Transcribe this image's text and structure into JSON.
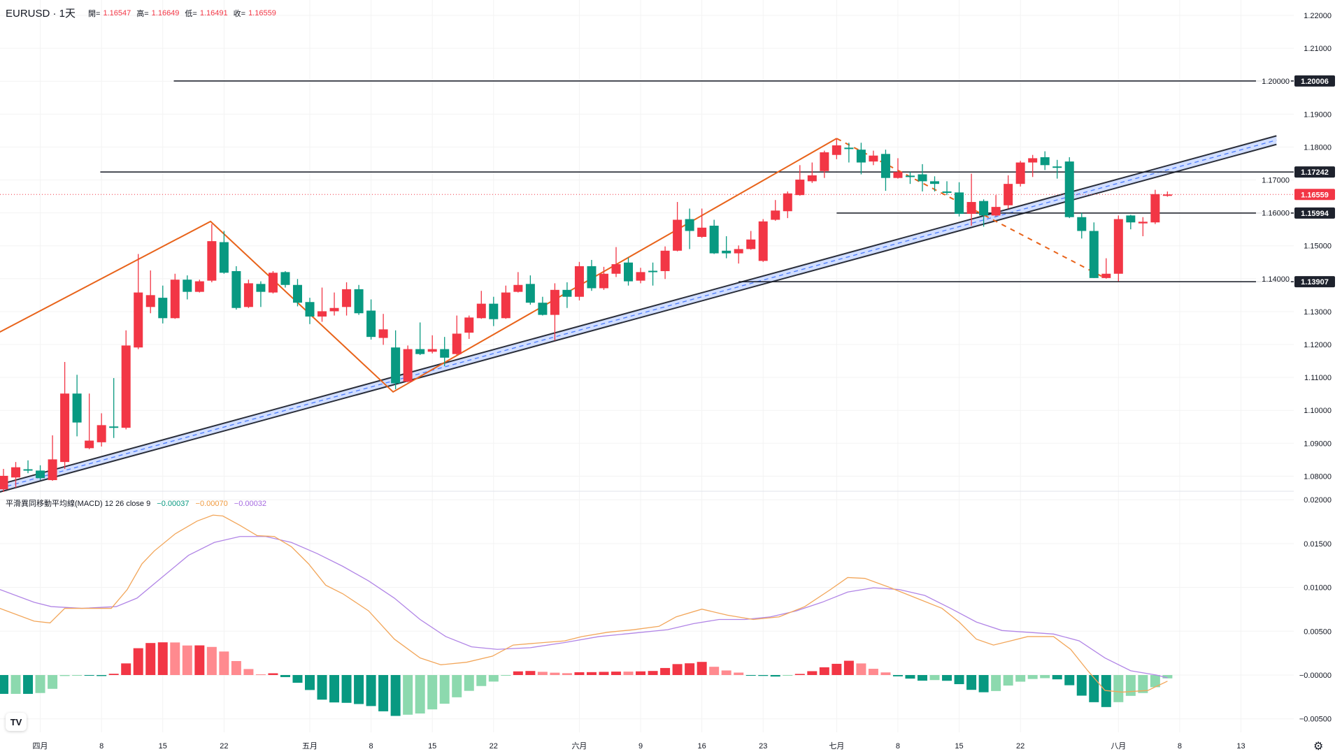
{
  "header": {
    "symbol": "EURUSD · 1天",
    "open_label": "開=",
    "open": "1.16547",
    "high_label": "高=",
    "high": "1.16649",
    "low_label": "低=",
    "low": "1.16491",
    "close_label": "收=",
    "close": "1.16559"
  },
  "macd_legend": {
    "title": "平滑異同移動平均線(MACD) 12 26 close 9",
    "histogram": "−0.00037",
    "macd": "−0.00070",
    "signal": "−0.00032"
  },
  "colors": {
    "up": "#F23645",
    "down": "#089981",
    "macd": "#F2A65A",
    "signal": "#B185E6",
    "zigzag": "#E8631A",
    "channel": "#2A2E39",
    "channel_fill": "#C9D8FF"
  },
  "chart_data": {
    "type": "candlestick",
    "price_axis": {
      "range": [
        1.075,
        1.225
      ],
      "ticks": [
        "1.22000",
        "1.21000",
        "1.20000",
        "1.19000",
        "1.18000",
        "1.17000",
        "1.16000",
        "1.15000",
        "1.14000",
        "1.13000",
        "1.12000",
        "1.11000",
        "1.10000",
        "1.09000",
        "1.08000"
      ]
    },
    "macd_axis": {
      "range": [
        -0.0063,
        0.0205
      ],
      "ticks": [
        "0.02000",
        "0.01500",
        "0.01000",
        "0.00500",
        "−0.00000",
        "−0.00500"
      ]
    },
    "time_ticks": [
      {
        "label": "四月",
        "index": 3
      },
      {
        "label": "8",
        "index": 8
      },
      {
        "label": "15",
        "index": 13
      },
      {
        "label": "22",
        "index": 18
      },
      {
        "label": "五月",
        "index": 25
      },
      {
        "label": "8",
        "index": 30
      },
      {
        "label": "15",
        "index": 35
      },
      {
        "label": "22",
        "index": 40
      },
      {
        "label": "六月",
        "index": 47
      },
      {
        "label": "9",
        "index": 52
      },
      {
        "label": "16",
        "index": 57
      },
      {
        "label": "23",
        "index": 62
      },
      {
        "label": "七月",
        "index": 68
      },
      {
        "label": "8",
        "index": 73
      },
      {
        "label": "15",
        "index": 78
      },
      {
        "label": "22",
        "index": 83
      },
      {
        "label": "八月",
        "index": 91
      },
      {
        "label": "8",
        "index": 96
      },
      {
        "label": "13",
        "index": 101
      }
    ],
    "candles_ohlc": [
      [
        1.076,
        1.0822,
        1.0752,
        1.0801
      ],
      [
        1.0796,
        1.0843,
        1.0765,
        1.0827
      ],
      [
        1.0821,
        1.0848,
        1.0809,
        1.0819
      ],
      [
        1.0817,
        1.0833,
        1.0788,
        1.0794
      ],
      [
        1.0788,
        1.0924,
        1.0786,
        1.0851
      ],
      [
        1.0843,
        1.1147,
        1.0822,
        1.1051
      ],
      [
        1.1051,
        1.1108,
        1.0921,
        1.0963
      ],
      [
        1.0885,
        1.1051,
        1.0882,
        1.0908
      ],
      [
        1.0903,
        1.0991,
        1.089,
        1.0955
      ],
      [
        1.0951,
        1.1098,
        1.0916,
        1.0949
      ],
      [
        1.0947,
        1.1243,
        1.0942,
        1.1197
      ],
      [
        1.1191,
        1.1475,
        1.1186,
        1.1358
      ],
      [
        1.1314,
        1.1425,
        1.1295,
        1.135
      ],
      [
        1.1342,
        1.1379,
        1.1264,
        1.128
      ],
      [
        1.128,
        1.1415,
        1.1278,
        1.1397
      ],
      [
        1.1397,
        1.141,
        1.1337,
        1.136
      ],
      [
        1.136,
        1.1397,
        1.1358,
        1.1392
      ],
      [
        1.1394,
        1.1566,
        1.1389,
        1.1514
      ],
      [
        1.1511,
        1.1545,
        1.1415,
        1.1418
      ],
      [
        1.1423,
        1.1438,
        1.1306,
        1.1311
      ],
      [
        1.1314,
        1.1397,
        1.1311,
        1.1386
      ],
      [
        1.1384,
        1.1392,
        1.1314,
        1.136
      ],
      [
        1.1358,
        1.1423,
        1.1355,
        1.1418
      ],
      [
        1.142,
        1.1423,
        1.1373,
        1.1381
      ],
      [
        1.1381,
        1.1399,
        1.1316,
        1.1327
      ],
      [
        1.1329,
        1.1342,
        1.1262,
        1.1285
      ],
      [
        1.1285,
        1.1373,
        1.1269,
        1.1301
      ],
      [
        1.1301,
        1.1358,
        1.1288,
        1.1311
      ],
      [
        1.1314,
        1.1389,
        1.1288,
        1.1368
      ],
      [
        1.1368,
        1.1381,
        1.129,
        1.1295
      ],
      [
        1.1303,
        1.1337,
        1.1215,
        1.1223
      ],
      [
        1.122,
        1.1293,
        1.1199,
        1.1246
      ],
      [
        1.1191,
        1.1243,
        1.1064,
        1.1082
      ],
      [
        1.1087,
        1.1197,
        1.1085,
        1.1186
      ],
      [
        1.1186,
        1.1267,
        1.1168,
        1.1171
      ],
      [
        1.1178,
        1.1228,
        1.1173,
        1.1186
      ],
      [
        1.1186,
        1.1223,
        1.1134,
        1.116
      ],
      [
        1.1171,
        1.1288,
        1.1168,
        1.1233
      ],
      [
        1.1236,
        1.1288,
        1.1217,
        1.1282
      ],
      [
        1.128,
        1.1363,
        1.1278,
        1.1324
      ],
      [
        1.1324,
        1.1345,
        1.1256,
        1.1277
      ],
      [
        1.128,
        1.1379,
        1.1278,
        1.1358
      ],
      [
        1.136,
        1.142,
        1.1358,
        1.1381
      ],
      [
        1.1384,
        1.141,
        1.1321,
        1.1327
      ],
      [
        1.1327,
        1.1345,
        1.1288,
        1.129
      ],
      [
        1.129,
        1.1386,
        1.1212,
        1.1366
      ],
      [
        1.1366,
        1.1389,
        1.1311,
        1.1345
      ],
      [
        1.1345,
        1.1451,
        1.1334,
        1.1438
      ],
      [
        1.1438,
        1.1457,
        1.1363,
        1.1371
      ],
      [
        1.1371,
        1.1436,
        1.1366,
        1.1415
      ],
      [
        1.1415,
        1.1496,
        1.1405,
        1.1444
      ],
      [
        1.1449,
        1.1464,
        1.1379,
        1.1392
      ],
      [
        1.1394,
        1.1433,
        1.1386,
        1.142
      ],
      [
        1.1424,
        1.1449,
        1.1379,
        1.1422
      ],
      [
        1.1423,
        1.1498,
        1.1399,
        1.1485
      ],
      [
        1.1485,
        1.1633,
        1.1483,
        1.1579
      ],
      [
        1.1581,
        1.1613,
        1.149,
        1.1545
      ],
      [
        1.1527,
        1.1613,
        1.1524,
        1.1555
      ],
      [
        1.1561,
        1.1579,
        1.1475,
        1.1477
      ],
      [
        1.1485,
        1.1529,
        1.1462,
        1.1477
      ],
      [
        1.1477,
        1.1501,
        1.1446,
        1.149
      ],
      [
        1.149,
        1.1545,
        1.1488,
        1.1519
      ],
      [
        1.1454,
        1.1581,
        1.1451,
        1.1574
      ],
      [
        1.1579,
        1.1639,
        1.1576,
        1.1607
      ],
      [
        1.1605,
        1.1665,
        1.1584,
        1.1659
      ],
      [
        1.1654,
        1.1745,
        1.1652,
        1.1701
      ],
      [
        1.1696,
        1.1753,
        1.1691,
        1.1714
      ],
      [
        1.1727,
        1.1789,
        1.1706,
        1.1784
      ],
      [
        1.1776,
        1.1826,
        1.1763,
        1.1805
      ],
      [
        1.1798,
        1.1813,
        1.1753,
        1.1796
      ],
      [
        1.1792,
        1.1813,
        1.1717,
        1.1753
      ],
      [
        1.1756,
        1.1789,
        1.1745,
        1.1774
      ],
      [
        1.1779,
        1.1792,
        1.1667,
        1.1706
      ],
      [
        1.1706,
        1.1766,
        1.1704,
        1.1724
      ],
      [
        1.1713,
        1.1724,
        1.1688,
        1.1711
      ],
      [
        1.1717,
        1.1748,
        1.1665,
        1.1696
      ],
      [
        1.1696,
        1.1711,
        1.1665,
        1.1688
      ],
      [
        1.1665,
        1.1696,
        1.1654,
        1.1663
      ],
      [
        1.1662,
        1.1693,
        1.1589,
        1.1597
      ],
      [
        1.1597,
        1.1719,
        1.1561,
        1.1633
      ],
      [
        1.1636,
        1.1641,
        1.1558,
        1.1592
      ],
      [
        1.1592,
        1.1654,
        1.1589,
        1.1618
      ],
      [
        1.1623,
        1.1714,
        1.1613,
        1.1688
      ],
      [
        1.1688,
        1.1758,
        1.168,
        1.1753
      ],
      [
        1.1753,
        1.1776,
        1.1709,
        1.1766
      ],
      [
        1.1769,
        1.1787,
        1.173,
        1.1745
      ],
      [
        1.1741,
        1.1761,
        1.1704,
        1.1739
      ],
      [
        1.1756,
        1.1769,
        1.1584,
        1.1587
      ],
      [
        1.1587,
        1.16,
        1.1522,
        1.1545
      ],
      [
        1.1545,
        1.1571,
        1.1402,
        1.1402
      ],
      [
        1.1402,
        1.1462,
        1.14,
        1.1415
      ],
      [
        1.1415,
        1.1592,
        1.1392,
        1.1581
      ],
      [
        1.1592,
        1.1594,
        1.155,
        1.1571
      ],
      [
        1.1568,
        1.1587,
        1.1529,
        1.1573
      ],
      [
        1.1571,
        1.167,
        1.1566,
        1.1657
      ],
      [
        1.16547,
        1.16649,
        1.16491,
        1.16559
      ]
    ],
    "horizontal_levels": [
      {
        "price": 1.20006,
        "label": "1.20006",
        "from_index": 13.9
      },
      {
        "price": 1.17242,
        "label": "1.17242",
        "from_index": 7.9
      },
      {
        "price": 1.15994,
        "label": "1.15994",
        "from_index": 68
      },
      {
        "price": 1.13907,
        "label": "1.13907",
        "from_index": 60
      }
    ],
    "last_price": {
      "price": 1.16559,
      "label": "1.16559"
    },
    "channel": {
      "upper": [
        [
          -0.3,
          1.0775
        ],
        [
          103.9,
          1.1834
        ]
      ],
      "lower": [
        [
          -0.3,
          1.0752
        ],
        [
          103.9,
          1.1808
        ]
      ]
    },
    "zigzag_solid": [
      [
        -0.3,
        1.1238
      ],
      [
        16.9,
        1.1574
      ],
      [
        31.8,
        1.1056
      ],
      [
        68,
        1.1826
      ]
    ],
    "zigzag_dashed": [
      [
        68,
        1.1826
      ],
      [
        89.9,
        1.1402
      ]
    ],
    "macd_line": [
      [
        -0.3,
        0.00761
      ],
      [
        2.5,
        0.00615
      ],
      [
        3.8,
        0.00595
      ],
      [
        5.0,
        0.00761
      ],
      [
        6.4,
        0.00761
      ],
      [
        8.8,
        0.00761
      ],
      [
        10.1,
        0.00976
      ],
      [
        11.3,
        0.01269
      ],
      [
        12.3,
        0.01415
      ],
      [
        14.0,
        0.0161
      ],
      [
        15.8,
        0.01757
      ],
      [
        17.1,
        0.01825
      ],
      [
        17.9,
        0.01815
      ],
      [
        19.3,
        0.01708
      ],
      [
        20.7,
        0.01591
      ],
      [
        22.1,
        0.01581
      ],
      [
        23.5,
        0.01464
      ],
      [
        24.9,
        0.01269
      ],
      [
        26.3,
        0.01025
      ],
      [
        27.7,
        0.00927
      ],
      [
        29.8,
        0.00732
      ],
      [
        31.9,
        0.0041
      ],
      [
        34.0,
        0.00195
      ],
      [
        35.7,
        0.00117
      ],
      [
        37.8,
        0.00146
      ],
      [
        39.9,
        0.00215
      ],
      [
        41.6,
        0.00342
      ],
      [
        44.1,
        0.00371
      ],
      [
        45.8,
        0.0039
      ],
      [
        47.2,
        0.00439
      ],
      [
        49.3,
        0.00488
      ],
      [
        51.4,
        0.00517
      ],
      [
        53.5,
        0.00556
      ],
      [
        54.9,
        0.00664
      ],
      [
        57.0,
        0.00752
      ],
      [
        59.1,
        0.00683
      ],
      [
        61.2,
        0.00634
      ],
      [
        63.3,
        0.00664
      ],
      [
        65.4,
        0.00781
      ],
      [
        67.5,
        0.00976
      ],
      [
        68.9,
        0.01113
      ],
      [
        70.3,
        0.01103
      ],
      [
        72.4,
        0.00996
      ],
      [
        74.5,
        0.00878
      ],
      [
        76.6,
        0.00761
      ],
      [
        78.0,
        0.00605
      ],
      [
        79.4,
        0.0041
      ],
      [
        80.8,
        0.00342
      ],
      [
        82.2,
        0.0039
      ],
      [
        83.6,
        0.00439
      ],
      [
        85.7,
        0.00439
      ],
      [
        87.1,
        0.00293
      ],
      [
        88.5,
        0.00049
      ],
      [
        89.9,
        -0.00176
      ],
      [
        91.3,
        -0.00195
      ],
      [
        93.4,
        -0.00176
      ],
      [
        95,
        -0.0007
      ]
    ],
    "signal_line": [
      [
        -0.3,
        0.00976
      ],
      [
        2.5,
        0.0083
      ],
      [
        3.9,
        0.00781
      ],
      [
        6.4,
        0.00761
      ],
      [
        9.2,
        0.00781
      ],
      [
        10.9,
        0.00878
      ],
      [
        13.0,
        0.01122
      ],
      [
        15.1,
        0.01366
      ],
      [
        17.2,
        0.01513
      ],
      [
        19.3,
        0.01581
      ],
      [
        21.4,
        0.01581
      ],
      [
        23.5,
        0.01513
      ],
      [
        25.6,
        0.01386
      ],
      [
        27.7,
        0.0124
      ],
      [
        29.8,
        0.01074
      ],
      [
        31.9,
        0.00878
      ],
      [
        34.0,
        0.00634
      ],
      [
        36.1,
        0.00439
      ],
      [
        38.2,
        0.00322
      ],
      [
        40.3,
        0.00293
      ],
      [
        43.0,
        0.00312
      ],
      [
        45.8,
        0.00371
      ],
      [
        48.6,
        0.00439
      ],
      [
        51.4,
        0.00478
      ],
      [
        54.2,
        0.00517
      ],
      [
        56.3,
        0.00586
      ],
      [
        58.4,
        0.00634
      ],
      [
        60.5,
        0.00634
      ],
      [
        62.6,
        0.00664
      ],
      [
        64.7,
        0.00732
      ],
      [
        66.8,
        0.0083
      ],
      [
        68.9,
        0.00947
      ],
      [
        71.0,
        0.00996
      ],
      [
        73.1,
        0.00976
      ],
      [
        75.2,
        0.00908
      ],
      [
        77.3,
        0.00761
      ],
      [
        79.4,
        0.00605
      ],
      [
        81.5,
        0.00508
      ],
      [
        83.6,
        0.00488
      ],
      [
        85.7,
        0.00468
      ],
      [
        87.8,
        0.0039
      ],
      [
        89.9,
        0.00195
      ],
      [
        92.0,
        0.00049
      ],
      [
        94.1,
        0
      ],
      [
        95,
        -0.00032
      ]
    ]
  }
}
